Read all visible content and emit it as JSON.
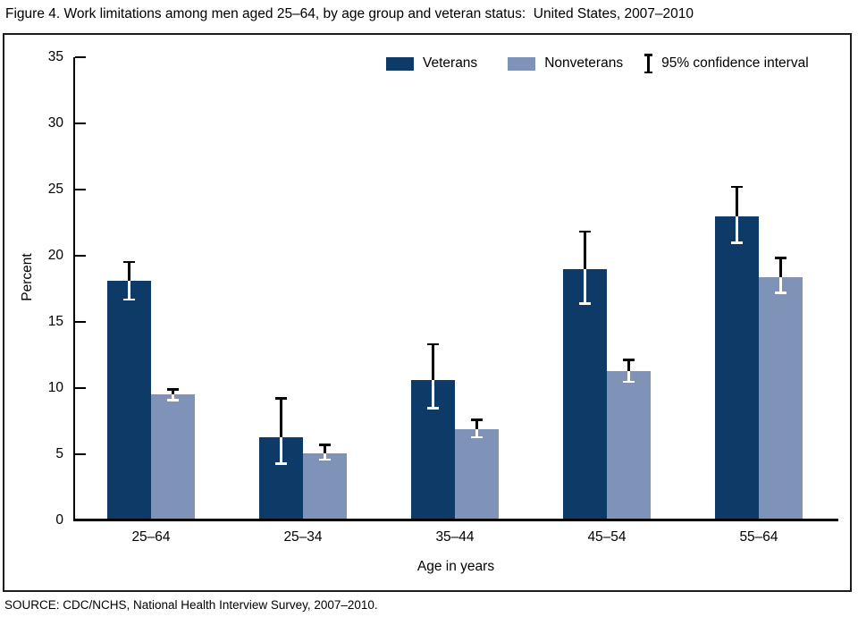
{
  "source": "SOURCE: CDC/NCHS, National Health Interview Survey, 2007–2010.",
  "chart_data": {
    "type": "bar",
    "title": "Figure 4. Work limitations among men aged 25–64, by age group and veteran status:  United States, 2007–2010",
    "categories": [
      "25–64",
      "25–34",
      "35–44",
      "45–54",
      "55–64"
    ],
    "series": [
      {
        "name": "Veterans",
        "color": "#0d3a66",
        "values": [
          18.1,
          6.3,
          10.6,
          19.0,
          23.0
        ],
        "ci_low": [
          16.6,
          4.2,
          8.4,
          16.3,
          20.9
        ],
        "ci_high": [
          19.6,
          9.3,
          13.4,
          21.9,
          25.3
        ]
      },
      {
        "name": "Nonveterans",
        "color": "#7f93b8",
        "values": [
          9.5,
          5.1,
          6.9,
          11.3,
          18.4
        ],
        "ci_low": [
          9.0,
          4.5,
          6.2,
          10.4,
          17.1
        ],
        "ci_high": [
          10.0,
          5.8,
          7.7,
          12.2,
          19.9
        ]
      }
    ],
    "xlabel": "Age in years",
    "ylabel": "Percent",
    "ylim": [
      0,
      35
    ],
    "yticks": [
      0,
      5,
      10,
      15,
      20,
      25,
      30,
      35
    ],
    "legend_ci_label": "95% confidence interval",
    "legend_position": "top"
  }
}
